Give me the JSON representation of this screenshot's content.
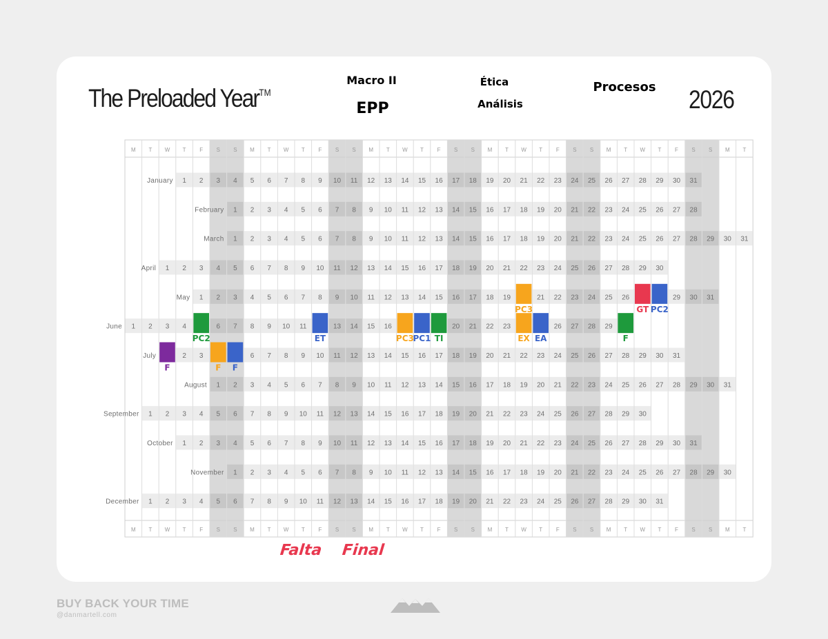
{
  "title": "The Preloaded Year",
  "trademark": "TM",
  "year": "2026",
  "stickers": [
    {
      "id": "macro",
      "label": "Macro II",
      "bg": "#c5e0a5",
      "color": "#1e9a3c"
    },
    {
      "id": "epp",
      "label": "EPP",
      "bg": "#d9eef2",
      "color": "#3a64c9"
    },
    {
      "id": "etica",
      "label": "Ética",
      "bg": "#eee3f3",
      "color": "#8a3aa8"
    },
    {
      "id": "analisis",
      "label": "Análisis",
      "bg": "#f7a39a",
      "color": "#d92a44"
    },
    {
      "id": "procesos",
      "label": "Procesos",
      "bg": "#fde5cf",
      "color": "#f39a2c"
    }
  ],
  "weekday_header": [
    "M",
    "T",
    "W",
    "T",
    "F",
    "S",
    "S",
    "M",
    "T",
    "W",
    "T",
    "F",
    "S",
    "S",
    "M",
    "T",
    "W",
    "T",
    "F",
    "S",
    "S",
    "M",
    "T",
    "W",
    "T",
    "F",
    "S",
    "S",
    "M",
    "T",
    "W",
    "T",
    "F",
    "S",
    "S",
    "M",
    "T"
  ],
  "months": [
    {
      "name": "January",
      "days": 31
    },
    {
      "name": "February",
      "days": 28
    },
    {
      "name": "March",
      "days": 31
    },
    {
      "name": "April",
      "days": 30
    },
    {
      "name": "May",
      "days": 31
    },
    {
      "name": "June",
      "days": 30
    },
    {
      "name": "July",
      "days": 31
    },
    {
      "name": "August",
      "days": 31
    },
    {
      "name": "September",
      "days": 30
    },
    {
      "name": "October",
      "days": 31
    },
    {
      "name": "November",
      "days": 30
    },
    {
      "name": "December",
      "days": 31
    }
  ],
  "colors": {
    "green": "#1e9a3c",
    "blue": "#3a64c9",
    "orange": "#f7a51d",
    "red": "#e8384f",
    "purple": "#7d2a9d"
  },
  "marks": [
    {
      "month": "May",
      "day": 20,
      "color": "orange",
      "label": "PC3"
    },
    {
      "month": "May",
      "day": 27,
      "color": "red",
      "label": "GT"
    },
    {
      "month": "May",
      "day": 28,
      "color": "blue",
      "label": "PC2"
    },
    {
      "month": "June",
      "day": 5,
      "color": "green",
      "label": "PC2"
    },
    {
      "month": "June",
      "day": 12,
      "color": "blue",
      "label": "ET"
    },
    {
      "month": "June",
      "day": 17,
      "color": "orange",
      "label": "PC3"
    },
    {
      "month": "June",
      "day": 18,
      "color": "blue",
      "label": "PC1"
    },
    {
      "month": "June",
      "day": 19,
      "color": "green",
      "label": "TI"
    },
    {
      "month": "June",
      "day": 24,
      "color": "orange",
      "label": "EX"
    },
    {
      "month": "June",
      "day": 25,
      "color": "blue",
      "label": "EA"
    },
    {
      "month": "June",
      "day": 30,
      "color": "green",
      "label": "F"
    },
    {
      "month": "July",
      "day": 1,
      "color": "purple",
      "label": "F"
    },
    {
      "month": "July",
      "day": 4,
      "color": "orange",
      "label": "F"
    },
    {
      "month": "July",
      "day": 5,
      "color": "blue",
      "label": "F"
    }
  ],
  "notes": [
    "Falta",
    "Final"
  ],
  "footer": {
    "brand": "BUY BACK YOUR TIME",
    "handle": "@danmartell.com"
  }
}
